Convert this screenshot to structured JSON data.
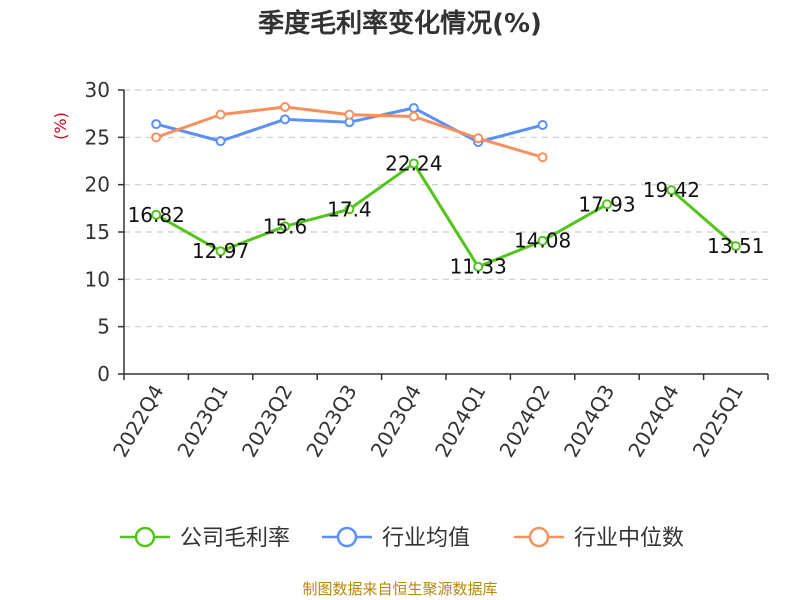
{
  "chart_data": {
    "type": "line",
    "title": "季度毛利率变化情况(%)",
    "ylabel": "(%)",
    "xlabel": "",
    "ylim": [
      0,
      30
    ],
    "yticks": [
      0,
      5,
      10,
      15,
      20,
      25,
      30
    ],
    "grid": true,
    "legend_position": "bottom",
    "categories": [
      "2022Q4",
      "2023Q1",
      "2023Q2",
      "2023Q3",
      "2023Q4",
      "2024Q1",
      "2024Q2",
      "2024Q3",
      "2024Q4",
      "2025Q1"
    ],
    "series": [
      {
        "name": "公司毛利率",
        "color": "#52c41a",
        "show_labels": true,
        "segments_broken_after_index": 7,
        "values": [
          16.82,
          12.97,
          15.6,
          17.4,
          22.24,
          11.33,
          14.08,
          17.93,
          19.42,
          13.51
        ],
        "labels": [
          "16.82",
          "12.97",
          "15.6",
          "17.4",
          "22.24",
          "11.33",
          "14.08",
          "17.93",
          "19.42",
          "13.51"
        ]
      },
      {
        "name": "行业均值",
        "color": "#5b8ff9",
        "show_labels": false,
        "values": [
          26.4,
          24.6,
          26.9,
          26.6,
          28.1,
          24.5,
          26.3,
          null,
          null,
          null
        ]
      },
      {
        "name": "行业中位数",
        "color": "#f6915f",
        "show_labels": false,
        "values": [
          25.0,
          27.4,
          28.2,
          27.4,
          27.2,
          24.9,
          22.9,
          null,
          null,
          null
        ]
      }
    ],
    "source": "制图数据来自恒生聚源数据库"
  },
  "colors": {
    "axis": "#333333",
    "grid": "#cccccc",
    "unit": "#d0021b",
    "source": "#b8860b"
  }
}
